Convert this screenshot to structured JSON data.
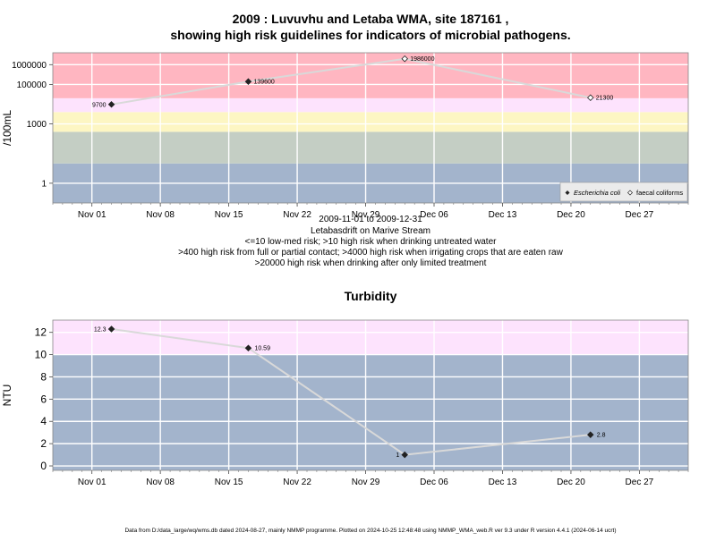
{
  "chart_data": [
    {
      "type": "line",
      "title_line1": "2009 : Luvuvhu and Letaba WMA, site 187161 ,",
      "title_line2": "showing high risk guidelines for indicators of microbial pathogens.",
      "ylabel": "/100mL",
      "yscale": "log",
      "ylim": [
        0.1,
        4000000
      ],
      "yticks": [
        1,
        1000,
        100000,
        1000000
      ],
      "ytick_labels": [
        "1",
        "1000",
        "100000",
        "1000000"
      ],
      "xlim": [
        "2009-10-28",
        "2010-01-01"
      ],
      "xticks": [
        "2009-11-01",
        "2009-11-08",
        "2009-11-15",
        "2009-11-22",
        "2009-11-29",
        "2009-12-06",
        "2009-12-13",
        "2009-12-20",
        "2009-12-27"
      ],
      "xtick_labels": [
        "Nov 01",
        "Nov 08",
        "Nov 15",
        "Nov 22",
        "Nov 29",
        "Dec 06",
        "Dec 13",
        "Dec 20",
        "Dec 27"
      ],
      "bands": [
        {
          "from": 0.1,
          "to": 10,
          "color": "#a3b4cc"
        },
        {
          "from": 10,
          "to": 400,
          "color": "#c4cec4"
        },
        {
          "from": 400,
          "to": 4000,
          "color": "#fdf6c3"
        },
        {
          "from": 4000,
          "to": 20000,
          "color": "#fde3fd"
        },
        {
          "from": 20000,
          "to": 4000000,
          "color": "#ffb6c1"
        }
      ],
      "series": [
        {
          "name": "Escherichia coli",
          "marker": "filled-diamond",
          "points": [
            {
              "x": "2009-11-03",
              "y": 9700,
              "label": "9700"
            },
            {
              "x": "2009-11-17",
              "y": 139600,
              "label": "139600"
            }
          ]
        },
        {
          "name": "faecal coliforms",
          "marker": "open-diamond",
          "points": [
            {
              "x": "2009-12-03",
              "y": 1986000,
              "label": "1986000"
            },
            {
              "x": "2009-12-22",
              "y": 21300,
              "label": "21300"
            }
          ]
        }
      ],
      "legend": {
        "position": "bottom-right",
        "entries": [
          "Escherichia coli",
          "faecal coliforms"
        ]
      },
      "caption": [
        "2009-11-01 to 2009-12-31",
        "Letabasdrift on Marive Stream",
        "<=10 low-med risk; >10 high risk when drinking untreated water",
        ">400 high risk from full or partial contact; >4000 high risk when irrigating crops that are eaten raw",
        ">20000 high risk when drinking after only limited treatment"
      ]
    },
    {
      "type": "line",
      "title": "Turbidity",
      "ylabel": "NTU",
      "ylim": [
        -0.4,
        13.1
      ],
      "yticks": [
        0,
        2,
        4,
        6,
        8,
        10,
        12
      ],
      "xlim": [
        "2009-10-28",
        "2010-01-01"
      ],
      "xticks": [
        "2009-11-01",
        "2009-11-08",
        "2009-11-15",
        "2009-11-22",
        "2009-11-29",
        "2009-12-06",
        "2009-12-13",
        "2009-12-20",
        "2009-12-27"
      ],
      "xtick_labels": [
        "Nov 01",
        "Nov 08",
        "Nov 15",
        "Nov 22",
        "Nov 29",
        "Dec 06",
        "Dec 13",
        "Dec 20",
        "Dec 27"
      ],
      "bands": [
        {
          "from": -0.4,
          "to": 10,
          "color": "#a3b4cc"
        },
        {
          "from": 10,
          "to": 13.1,
          "color": "#fde3fd"
        }
      ],
      "points": [
        {
          "x": "2009-11-03",
          "y": 12.3,
          "label": "12.3"
        },
        {
          "x": "2009-11-17",
          "y": 10.59,
          "label": "10.59"
        },
        {
          "x": "2009-12-03",
          "y": 1,
          "label": "1"
        },
        {
          "x": "2009-12-22",
          "y": 2.8,
          "label": "2.8"
        }
      ]
    }
  ],
  "footer": "Data from D:/data_large/wq/wms.db dated 2024-08-27, mainly NMMP programme. Plotted on 2024-10-25 12:48:48 using NMMP_WMA_web.R ver 9.3 under R version 4.4.1 (2024-06-14 ucrt)"
}
